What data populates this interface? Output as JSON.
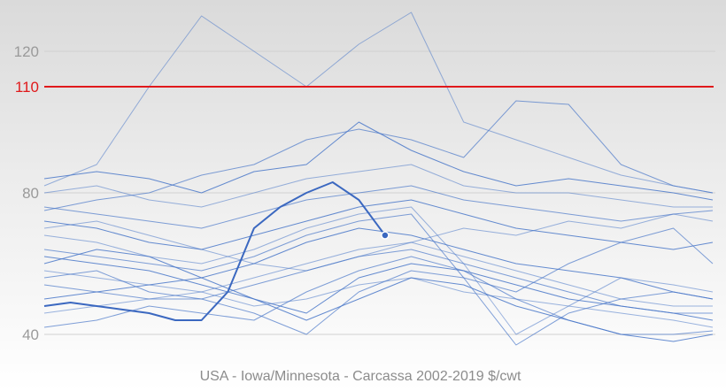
{
  "chart_data": {
    "type": "line",
    "title": "",
    "xlabel": "USA - Iowa/Minnesota - Carcassa 2002-2019  $/cwt",
    "ylabel": "",
    "ylim": [
      35,
      140
    ],
    "xlim": [
      1,
      52
    ],
    "yticks": [
      40,
      80,
      120
    ],
    "grid": true,
    "legend": "none",
    "reference_line": {
      "value": 110,
      "label": "110",
      "color": "#e0191b"
    },
    "line_color": "#4a78c9",
    "highlight_color": "#3b68c0",
    "series": [
      {
        "x": [
          1,
          5,
          9,
          13,
          17,
          21,
          25,
          29,
          33,
          37,
          41,
          45,
          49,
          52
        ],
        "values": [
          82,
          88,
          110,
          130,
          120,
          110,
          122,
          131,
          100,
          95,
          90,
          85,
          82,
          80
        ]
      },
      {
        "x": [
          1,
          5,
          9,
          13,
          17,
          21,
          25,
          29,
          33,
          37,
          41,
          45,
          49,
          52
        ],
        "values": [
          75,
          78,
          80,
          85,
          88,
          95,
          98,
          95,
          90,
          106,
          105,
          88,
          82,
          80
        ]
      },
      {
        "x": [
          1,
          5,
          9,
          13,
          17,
          21,
          25,
          29,
          33,
          37,
          41,
          45,
          49,
          52
        ],
        "values": [
          84,
          86,
          84,
          80,
          86,
          88,
          100,
          92,
          86,
          82,
          84,
          82,
          80,
          78
        ]
      },
      {
        "x": [
          1,
          5,
          9,
          13,
          17,
          21,
          25,
          29,
          33,
          37,
          41,
          45,
          49,
          52
        ],
        "values": [
          80,
          82,
          78,
          76,
          80,
          84,
          86,
          88,
          82,
          80,
          80,
          78,
          76,
          76
        ]
      },
      {
        "x": [
          1,
          5,
          9,
          13,
          17,
          21,
          25,
          29,
          33,
          37,
          41,
          45,
          49,
          52
        ],
        "values": [
          76,
          74,
          72,
          70,
          74,
          78,
          80,
          82,
          78,
          76,
          74,
          72,
          74,
          75
        ]
      },
      {
        "x": [
          1,
          5,
          9,
          13,
          17,
          21,
          25,
          29,
          33,
          37,
          41,
          45,
          49,
          52
        ],
        "values": [
          72,
          70,
          66,
          64,
          68,
          72,
          76,
          78,
          74,
          70,
          68,
          66,
          64,
          66
        ]
      },
      {
        "x": [
          1,
          5,
          9,
          13,
          17,
          21,
          25,
          29,
          33,
          37,
          41,
          45,
          49,
          52
        ],
        "values": [
          68,
          66,
          62,
          60,
          64,
          70,
          74,
          76,
          60,
          40,
          48,
          56,
          54,
          52
        ]
      },
      {
        "x": [
          1,
          5,
          9,
          13,
          17,
          21,
          25,
          29,
          33,
          37,
          41,
          45,
          49,
          52
        ],
        "values": [
          64,
          62,
          60,
          58,
          62,
          68,
          72,
          74,
          56,
          37,
          46,
          50,
          52,
          50
        ]
      },
      {
        "x": [
          1,
          5,
          9,
          13,
          17,
          21,
          25,
          29,
          33,
          37,
          41,
          45,
          49,
          52
        ],
        "values": [
          60,
          64,
          62,
          56,
          60,
          66,
          70,
          68,
          64,
          60,
          58,
          56,
          52,
          50
        ]
      },
      {
        "x": [
          1,
          5,
          9,
          13,
          17,
          21,
          25,
          29,
          33,
          37,
          41,
          45,
          49,
          52
        ],
        "values": [
          58,
          56,
          54,
          52,
          56,
          60,
          64,
          66,
          62,
          58,
          54,
          50,
          48,
          48
        ]
      },
      {
        "x": [
          1,
          5,
          9,
          13,
          17,
          21,
          25,
          29,
          33,
          37,
          41,
          45,
          49,
          52
        ],
        "values": [
          54,
          52,
          50,
          50,
          54,
          58,
          62,
          64,
          60,
          56,
          52,
          48,
          46,
          46
        ]
      },
      {
        "x": [
          1,
          5,
          9,
          13,
          17,
          21,
          25,
          29,
          33,
          37,
          41,
          45,
          49,
          52
        ],
        "values": [
          50,
          52,
          54,
          56,
          50,
          46,
          56,
          60,
          58,
          54,
          50,
          48,
          46,
          44
        ]
      },
      {
        "x": [
          1,
          5,
          9,
          13,
          17,
          21,
          25,
          29,
          33,
          37,
          41,
          45,
          49,
          52
        ],
        "values": [
          46,
          48,
          50,
          52,
          48,
          50,
          54,
          56,
          52,
          50,
          48,
          46,
          44,
          42
        ]
      },
      {
        "x": [
          1,
          5,
          9,
          13,
          17,
          21,
          25,
          29,
          33,
          37,
          41,
          45,
          49,
          52
        ],
        "values": [
          42,
          44,
          48,
          46,
          44,
          52,
          58,
          62,
          58,
          50,
          44,
          40,
          40,
          41
        ]
      },
      {
        "x": [
          1,
          5,
          9,
          13,
          17,
          21,
          25,
          29,
          33,
          37,
          41,
          45,
          49,
          52
        ],
        "values": [
          62,
          60,
          58,
          54,
          50,
          44,
          50,
          56,
          54,
          48,
          44,
          40,
          38,
          40
        ]
      },
      {
        "x": [
          1,
          5,
          9,
          13,
          17,
          21,
          25,
          29,
          33,
          37,
          41,
          45,
          49,
          52
        ],
        "values": [
          70,
          72,
          68,
          64,
          60,
          58,
          62,
          66,
          70,
          68,
          72,
          70,
          74,
          72
        ]
      },
      {
        "x": [
          1,
          5,
          9,
          13,
          17,
          21,
          25,
          29,
          33,
          37,
          41,
          45,
          49,
          52
        ],
        "values": [
          56,
          58,
          52,
          50,
          46,
          40,
          52,
          58,
          56,
          52,
          60,
          66,
          70,
          60
        ]
      }
    ],
    "highlight_series": {
      "x": [
        1,
        3,
        5,
        7,
        9,
        11,
        13,
        15,
        17,
        19,
        21,
        23,
        25,
        27
      ],
      "values": [
        48,
        49,
        48,
        47,
        46,
        44,
        44,
        52,
        70,
        76,
        80,
        83,
        78,
        68
      ]
    }
  }
}
